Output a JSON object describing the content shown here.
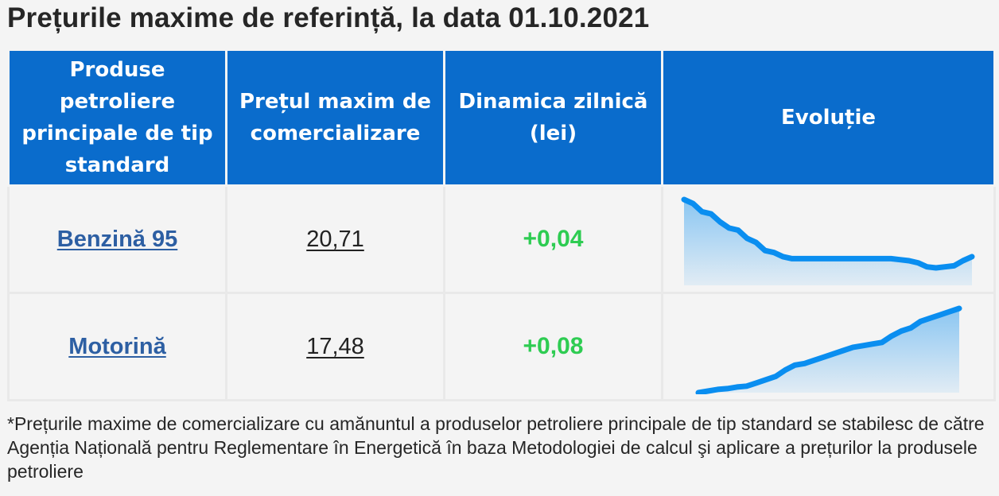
{
  "title": "Prețurile maxime de referință, la data 01.10.2021",
  "table": {
    "headers": [
      "Produse petroliere principale de tip standard",
      "Prețul maxim de comercializare",
      "Dinamica zilnică (lei)",
      "Evoluție"
    ],
    "rows": [
      {
        "product": "Benzină 95",
        "price": "20,71",
        "delta": "+0,04"
      },
      {
        "product": "Motorină",
        "price": "17,48",
        "delta": "+0,08"
      }
    ]
  },
  "footnote": "*Prețurile maxime de comercializare cu amănuntul a produselor petroliere principale de tip standard se stabilesc de către Agenția Națională pentru Reglementare în Energetică în baza Metodologiei de calcul şi aplicare a prețurilor la produsele petroliere",
  "colors": {
    "header_bg": "#0a6ccc",
    "link": "#2d5fa3",
    "delta_positive": "#2ecc52",
    "sparkline": "#0a8ef0"
  },
  "chart_data": [
    {
      "type": "area",
      "name": "Benzină 95",
      "values": [
        100,
        96,
        88,
        86,
        78,
        72,
        70,
        62,
        58,
        50,
        48,
        44,
        42,
        42,
        42,
        42,
        42,
        42,
        42,
        42,
        42,
        42,
        42,
        42,
        41,
        40,
        38,
        34,
        33,
        34,
        35,
        40,
        44
      ]
    },
    {
      "type": "area",
      "name": "Motorină",
      "values": [
        0,
        2,
        4,
        5,
        7,
        8,
        12,
        16,
        20,
        28,
        34,
        36,
        40,
        44,
        48,
        52,
        56,
        58,
        60,
        62,
        70,
        76,
        80,
        88,
        92,
        96,
        100,
        104
      ]
    }
  ]
}
